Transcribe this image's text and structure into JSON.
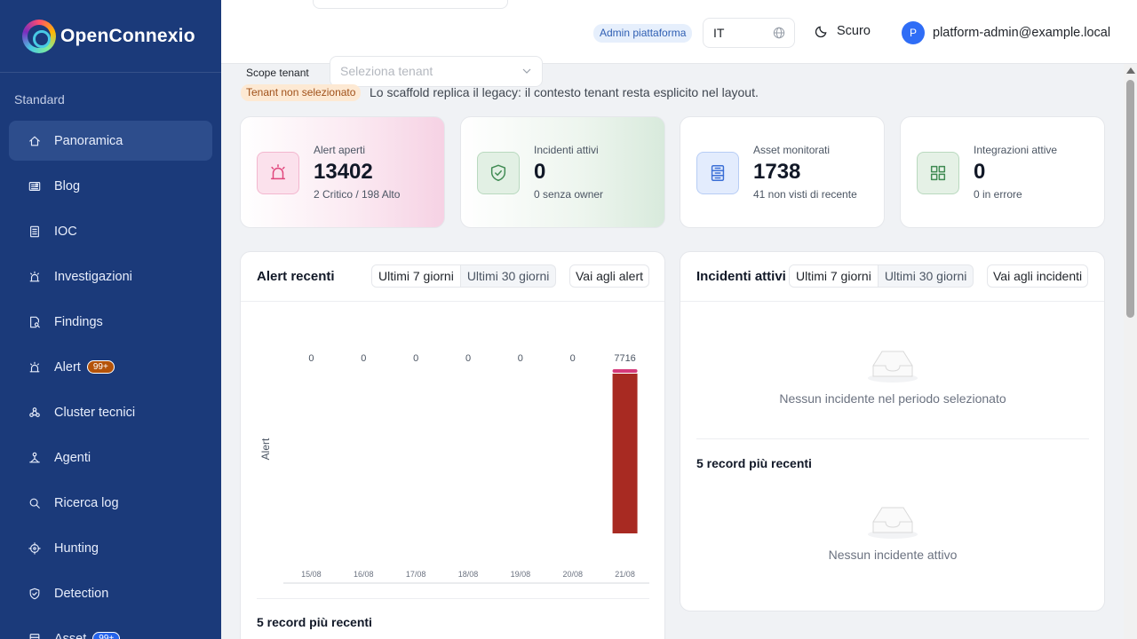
{
  "brand": {
    "name": "OpenConnexio"
  },
  "sidebar": {
    "group": "Standard",
    "items": [
      {
        "label": "Panoramica",
        "icon": "home-icon",
        "active": true
      },
      {
        "label": "Blog",
        "icon": "newspaper-icon"
      },
      {
        "label": "IOC",
        "icon": "file-list-icon"
      },
      {
        "label": "Investigazioni",
        "icon": "siren-icon"
      },
      {
        "label": "Findings",
        "icon": "file-search-icon"
      },
      {
        "label": "Alert",
        "icon": "siren-icon",
        "badge": "99+"
      },
      {
        "label": "Cluster tecnici",
        "icon": "cluster-icon"
      },
      {
        "label": "Agenti",
        "icon": "network-icon"
      },
      {
        "label": "Ricerca log",
        "icon": "search-icon"
      },
      {
        "label": "Hunting",
        "icon": "crosshair-icon"
      },
      {
        "label": "Detection",
        "icon": "shield-icon"
      },
      {
        "label": "Asset",
        "icon": "server-icon",
        "badge": "99+"
      }
    ]
  },
  "header": {
    "role": "Admin piattaforma",
    "language": "IT",
    "theme": "Scuro",
    "user_initial": "P",
    "user_email": "platform-admin@example.local"
  },
  "tenant": {
    "label": "Scope tenant",
    "placeholder": "Seleziona tenant",
    "status": "Tenant non selezionato",
    "note": "Lo scaffold replica il legacy: il contesto tenant resta esplicito nel layout."
  },
  "kpis": [
    {
      "label": "Alert aperti",
      "value": "13402",
      "sub": "2 Critico / 198 Alto",
      "icon": "siren-icon",
      "accent": "#e0457b"
    },
    {
      "label": "Incidenti attivi",
      "value": "0",
      "sub": "0 senza owner",
      "icon": "shield-check-icon",
      "accent": "#3f8a52"
    },
    {
      "label": "Asset monitorati",
      "value": "1738",
      "sub": "41 non visti di recente",
      "icon": "server-icon",
      "accent": "#3b6fd6"
    },
    {
      "label": "Integrazioni attive",
      "value": "0",
      "sub": "0 in errore",
      "icon": "grid-icon",
      "accent": "#3f8a52"
    }
  ],
  "alerts_panel": {
    "title": "Alert recenti",
    "range_7": "Ultimi 7 giorni",
    "range_30": "Ultimi 30 giorni",
    "goto": "Vai agli alert",
    "recent_title": "5 record più recenti"
  },
  "incidents_panel": {
    "title": "Incidenti attivi",
    "range_7": "Ultimi 7 giorni",
    "range_30": "Ultimi 30 giorni",
    "goto": "Vai agli incidenti",
    "empty_period": "Nessun incidente nel periodo selezionato",
    "recent_title": "5 record più recenti",
    "empty_active": "Nessun incidente attivo"
  },
  "chart_data": {
    "type": "bar",
    "categories": [
      "15/08",
      "16/08",
      "17/08",
      "18/08",
      "19/08",
      "20/08",
      "21/08"
    ],
    "values": [
      0,
      0,
      0,
      0,
      0,
      0,
      7716
    ],
    "ylabel": "Alert",
    "bar_color": "#a82a22",
    "cap_color": "#d63a7a"
  }
}
